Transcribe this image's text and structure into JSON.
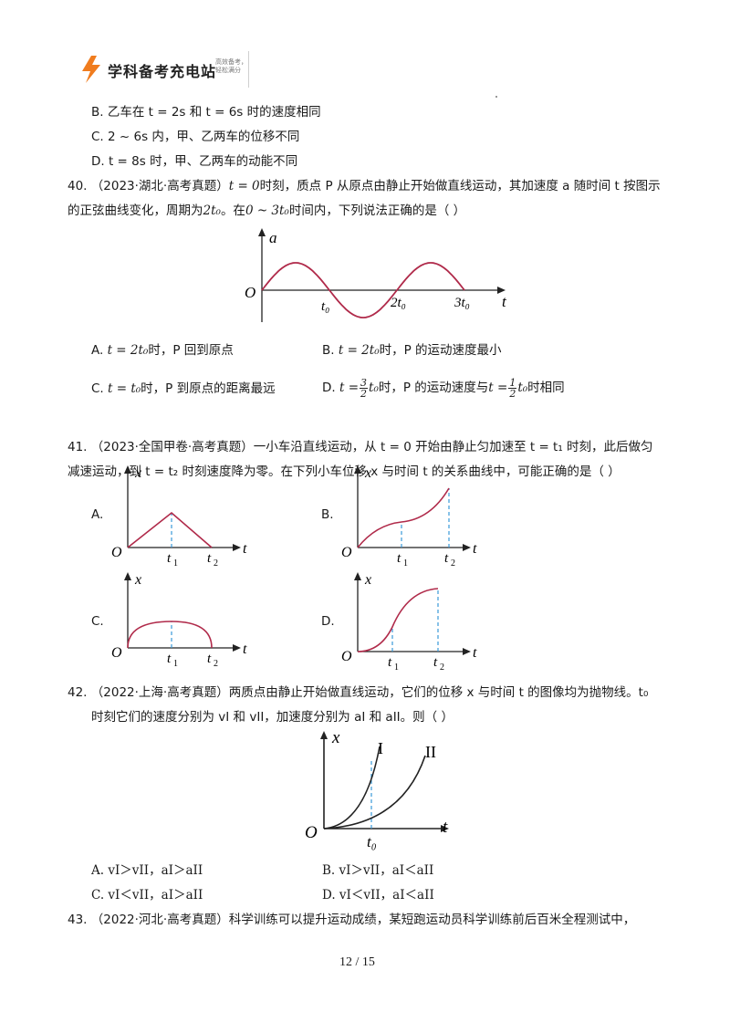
{
  "header": {
    "brand": "学科备考充电站",
    "slogan": "高效备考，轻松满分"
  },
  "prev_question": {
    "B": "B.  乙车在 t = 2s 和 t = 6s 时的速度相同",
    "C": "C.  2 ~ 6s 内，甲、乙两车的位移不同",
    "D": "D.  t = 8s 时，甲、乙两车的动能不同"
  },
  "q40": {
    "number": "40.",
    "line1_a": "（2023·湖北·高考真题）",
    "line1_t0": "t = 0",
    "line1_b": "时刻，质点 P 从原点由静止开始做直线运动，其加速度 a 随时间 t 按图示",
    "line2_a": "的正弦曲线变化，周期为",
    "line2_period": "2t₀",
    "line2_b": "。在",
    "line2_range": "0 ~ 3t₀",
    "line2_c": "时间内，下列说法正确的是（     ）",
    "graph": {
      "y_label": "a",
      "x_label": "t",
      "origin": "O",
      "t1": "t₀",
      "t2": "2t₀",
      "t3": "3t₀"
    },
    "opt_A_a": "A.",
    "opt_A_t": "t = 2t₀",
    "opt_A_b": "时，P 回到原点",
    "opt_B_a": "B.",
    "opt_B_t": "t = 2t₀",
    "opt_B_b": "时，P 的运动速度最小",
    "opt_C_a": "C.",
    "opt_C_t": "t = t₀",
    "opt_C_b": "时，P 到原点的距离最远",
    "opt_D_a": "D.",
    "opt_D_t": "t =",
    "opt_D_n1": "3",
    "opt_D_d1": "2",
    "opt_D_t0": "t₀",
    "opt_D_b": "时，P 的运动速度与",
    "opt_D_t2": "t =",
    "opt_D_n2": "1",
    "opt_D_d2": "2",
    "opt_D_t02": "t₀",
    "opt_D_c": "时相同"
  },
  "q41": {
    "number": "41.",
    "line1": "（2023·全国甲卷·高考真题）一小车沿直线运动，从 t = 0 开始由静止匀加速至 t = t₁ 时刻，此后做匀",
    "line2": "减速运动，到 t = t₂ 时刻速度降为零。在下列小车位移 x 与时间 t 的关系曲线中，可能正确的是（    ）",
    "graphs": [
      {
        "label": "A.",
        "y": "x",
        "x": "t",
        "o": "O",
        "t1": "t",
        "t1s": "1",
        "t2": "t",
        "t2s": "2"
      },
      {
        "label": "B.",
        "y": "x",
        "x": "t",
        "o": "O",
        "t1": "t",
        "t1s": "1",
        "t2": "t",
        "t2s": "2"
      },
      {
        "label": "C.",
        "y": "x",
        "x": "t",
        "o": "O",
        "t1": "t",
        "t1s": "1",
        "t2": "t",
        "t2s": "2"
      },
      {
        "label": "D.",
        "y": "x",
        "x": "t",
        "o": "O",
        "t1": "t",
        "t1s": "1",
        "t2": "t",
        "t2s": "2"
      }
    ]
  },
  "q42": {
    "number": "42.",
    "line1": "（2022·上海·高考真题）两质点由静止开始做直线运动，它们的位移 x 与时间 t 的图像均为抛物线。t₀",
    "line2": "时刻它们的速度分别为 vI 和 vII，加速度分别为 aI 和 aII。则（       ）",
    "graph": {
      "y": "x",
      "x": "t",
      "o": "O",
      "t0": "t₀",
      "c1": "I",
      "c2": "II"
    },
    "opt_A": "A.   vI＞vII，aI＞aII",
    "opt_B": "B.   vI＞vII，aI＜aII",
    "opt_C": "C.   vI＜vII，aI＞aII",
    "opt_D": "D.   vI＜vII，aI＜aII"
  },
  "q43": {
    "number": "43.",
    "line1": "（2022·河北·高考真题）科学训练可以提升运动成绩，某短跑运动员科学训练前后百米全程测试中，"
  },
  "footer": {
    "page": "12  /  15"
  },
  "colors": {
    "curve": "#b02a4a",
    "dash": "#3a9ad9",
    "logo_orange": "#f07c1e"
  }
}
